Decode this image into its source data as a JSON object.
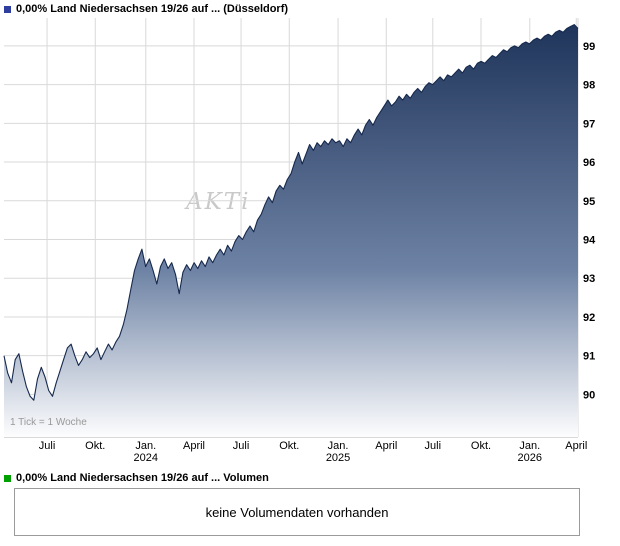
{
  "header": {
    "title": "0,00% Land Niedersachsen 19/26 auf ... (Düsseldorf)",
    "legend_color": "#2e3e9e"
  },
  "chart_data": {
    "type": "area",
    "title": "0,00% Land Niedersachsen 19/26 auf ... (Düsseldorf)",
    "tick_note": "1 Tick = 1 Woche",
    "watermark": "AKTi",
    "x_unit": "1 tick = 1 week, Juli 2023 - April 2026",
    "ylabel": "",
    "xlabel": "",
    "ylim": [
      88.9,
      99.72
    ],
    "y_ticks": [
      90,
      91,
      92,
      93,
      94,
      95,
      96,
      97,
      98,
      99
    ],
    "x_ticks": [
      {
        "label": "Juli",
        "year": "",
        "pos": 0.075
      },
      {
        "label": "Okt.",
        "year": "",
        "pos": 0.159
      },
      {
        "label": "Jan.",
        "year": "2024",
        "pos": 0.247
      },
      {
        "label": "April",
        "year": "",
        "pos": 0.331
      },
      {
        "label": "Juli",
        "year": "",
        "pos": 0.413
      },
      {
        "label": "Okt.",
        "year": "",
        "pos": 0.497
      },
      {
        "label": "Jan.",
        "year": "2025",
        "pos": 0.582
      },
      {
        "label": "April",
        "year": "",
        "pos": 0.666
      },
      {
        "label": "Juli",
        "year": "",
        "pos": 0.747
      },
      {
        "label": "Okt.",
        "year": "",
        "pos": 0.831
      },
      {
        "label": "Jan.",
        "year": "2026",
        "pos": 0.916
      },
      {
        "label": "April",
        "year": "",
        "pos": 0.997
      }
    ],
    "values": [
      91.0,
      90.55,
      90.3,
      90.9,
      91.05,
      90.6,
      90.2,
      89.95,
      89.85,
      90.4,
      90.7,
      90.45,
      90.1,
      89.95,
      90.3,
      90.6,
      90.9,
      91.2,
      91.3,
      91.0,
      90.75,
      90.9,
      91.1,
      90.95,
      91.05,
      91.2,
      90.9,
      91.1,
      91.3,
      91.15,
      91.35,
      91.5,
      91.8,
      92.2,
      92.7,
      93.2,
      93.5,
      93.75,
      93.3,
      93.5,
      93.2,
      92.85,
      93.3,
      93.5,
      93.25,
      93.4,
      93.1,
      92.6,
      93.15,
      93.35,
      93.2,
      93.4,
      93.25,
      93.45,
      93.3,
      93.55,
      93.4,
      93.6,
      93.75,
      93.6,
      93.85,
      93.7,
      93.95,
      94.1,
      94.0,
      94.2,
      94.35,
      94.2,
      94.5,
      94.65,
      94.9,
      95.1,
      94.95,
      95.25,
      95.4,
      95.3,
      95.55,
      95.7,
      96.0,
      96.25,
      95.95,
      96.2,
      96.45,
      96.3,
      96.5,
      96.4,
      96.55,
      96.45,
      96.6,
      96.5,
      96.55,
      96.4,
      96.6,
      96.5,
      96.7,
      96.85,
      96.7,
      96.95,
      97.1,
      96.95,
      97.15,
      97.3,
      97.45,
      97.6,
      97.45,
      97.55,
      97.7,
      97.6,
      97.75,
      97.65,
      97.8,
      97.9,
      97.8,
      97.95,
      98.05,
      98.0,
      98.1,
      98.2,
      98.1,
      98.25,
      98.2,
      98.3,
      98.4,
      98.3,
      98.45,
      98.5,
      98.4,
      98.55,
      98.6,
      98.55,
      98.65,
      98.75,
      98.7,
      98.8,
      98.9,
      98.85,
      98.95,
      99.0,
      98.95,
      99.05,
      99.1,
      99.05,
      99.15,
      99.2,
      99.15,
      99.25,
      99.3,
      99.25,
      99.35,
      99.4,
      99.35,
      99.45,
      99.5,
      99.55,
      99.45
    ],
    "line_color": "#16294d",
    "fill_top": "#1d3258",
    "fill_mid": "#6d82a4",
    "fill_bottom": "#fdfdfe",
    "grid_color": "#d9d9d9",
    "axis_color": "#b3b3b3"
  },
  "volume": {
    "label": "0,00% Land Niedersachsen 19/26 auf ... Volumen",
    "legend_color": "#00a000",
    "message": "keine Volumendaten vorhanden"
  }
}
